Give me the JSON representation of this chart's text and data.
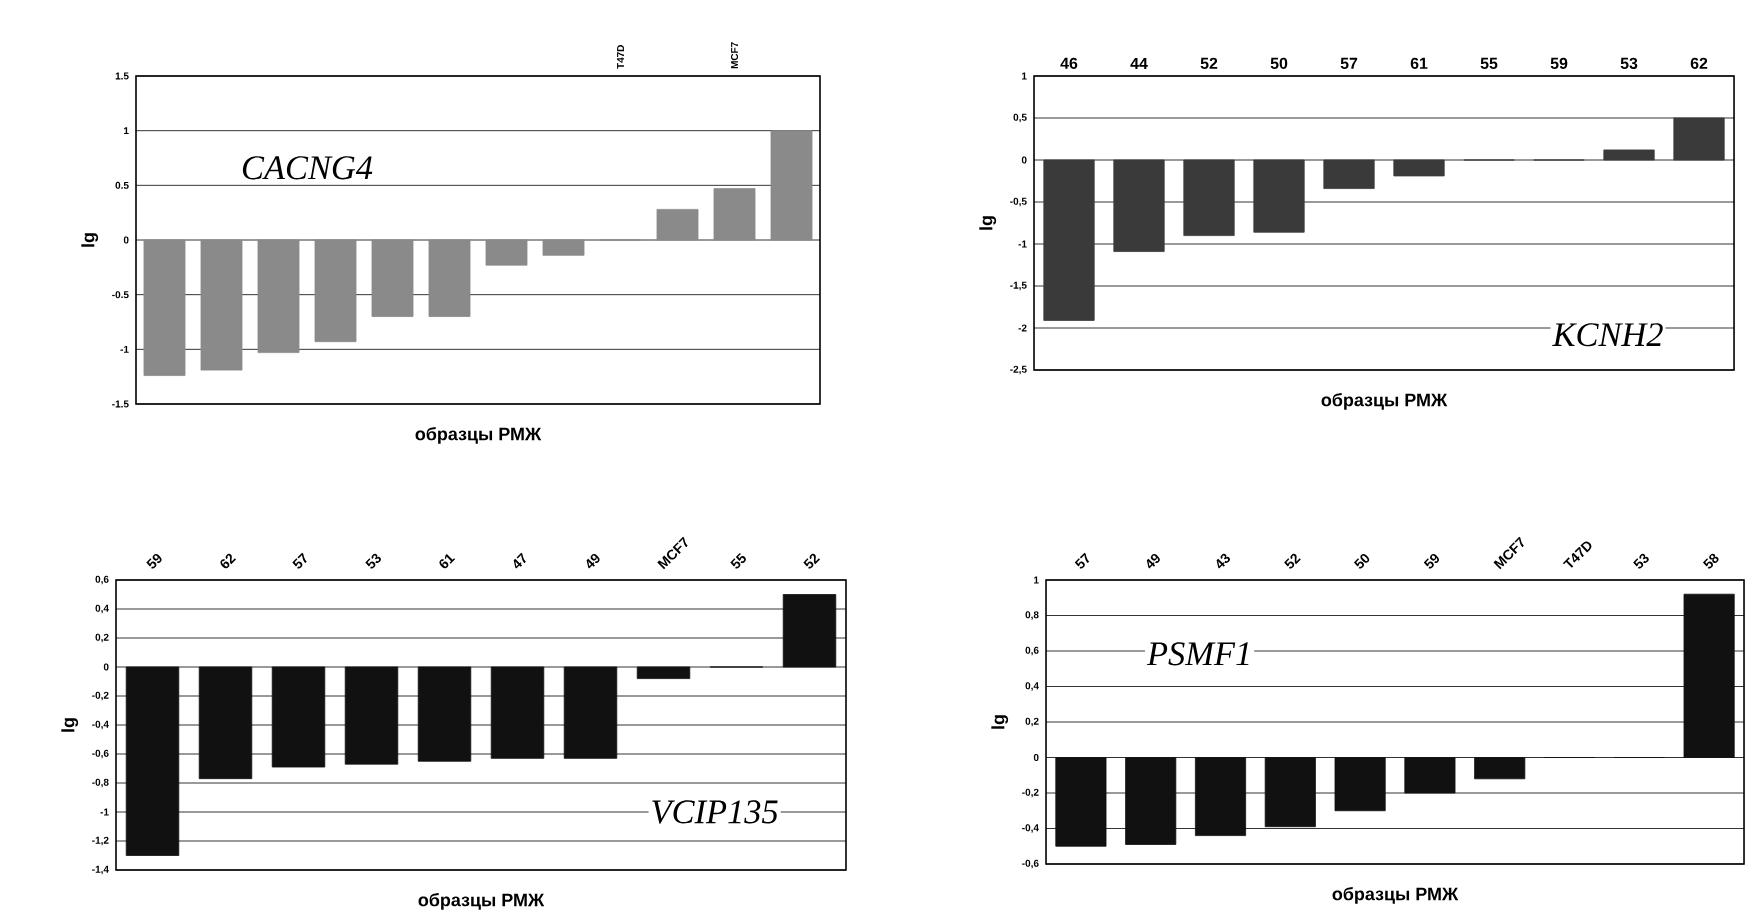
{
  "chart_data": [
    {
      "type": "bar",
      "annotations": [
        "CACNG4"
      ],
      "xlabel": "образцы РМЖ",
      "ylabel": "lg",
      "categories": [
        null,
        null,
        null,
        null,
        null,
        null,
        null,
        null,
        "T47D",
        null,
        "MCF7",
        null
      ],
      "values": [
        -1.24,
        -1.19,
        -1.03,
        -0.93,
        -0.7,
        -0.7,
        -0.23,
        -0.14,
        0,
        0.28,
        0.47,
        1.0
      ],
      "color": "#8a8a8a",
      "ylim": [
        -1.5,
        1.5
      ],
      "yticks": [
        1.5,
        1,
        0.5,
        0,
        -0.5,
        -1,
        -1.5
      ],
      "grid": "y"
    },
    {
      "type": "bar",
      "annotations": [
        "KCNH2"
      ],
      "xlabel": "образцы РМЖ",
      "ylabel": "lg",
      "categories": [
        "46",
        "44",
        "52",
        "50",
        "57",
        "61",
        "55",
        "59",
        "53",
        "62"
      ],
      "values": [
        -1.91,
        -1.09,
        -0.9,
        -0.86,
        -0.34,
        -0.19,
        0,
        0,
        0.12,
        0.5
      ],
      "color": "#3a3a3a",
      "ylim": [
        -2.5,
        1
      ],
      "yticks": [
        1,
        {
          "value": 0.5,
          "label": "0,5"
        },
        0,
        {
          "value": -0.5,
          "label": "-0,5"
        },
        -1,
        {
          "value": -1.5,
          "label": "-1,5"
        },
        -2,
        {
          "value": -2.5,
          "label": "-2,5"
        }
      ],
      "grid": "y"
    },
    {
      "type": "bar",
      "annotations": [
        "VCIP135"
      ],
      "xlabel": "образцы РМЖ",
      "ylabel": "lg",
      "categories": [
        "59",
        "62",
        "57",
        "53",
        "61",
        "47",
        "49",
        "MCF7",
        "55",
        "52"
      ],
      "values": [
        -1.3,
        -0.77,
        -0.69,
        -0.67,
        -0.65,
        -0.63,
        -0.63,
        -0.08,
        0,
        0.5
      ],
      "color": "#111111",
      "ylim": [
        -1.4,
        0.6
      ],
      "yticks": [
        {
          "value": 0.6,
          "label": "0,6"
        },
        {
          "value": 0.4,
          "label": "0,4"
        },
        {
          "value": 0.2,
          "label": "0,2"
        },
        0,
        {
          "value": -0.2,
          "label": "-0,2"
        },
        {
          "value": -0.4,
          "label": "-0,4"
        },
        {
          "value": -0.6,
          "label": "-0,6"
        },
        {
          "value": -0.8,
          "label": "-0,8"
        },
        -1,
        {
          "value": -1.2,
          "label": "-1,2"
        },
        {
          "value": -1.4,
          "label": "-1,4"
        }
      ],
      "grid": "y"
    },
    {
      "type": "bar",
      "annotations": [
        "PSMF1"
      ],
      "xlabel": "образцы РМЖ",
      "ylabel": "lg",
      "categories": [
        "57",
        "49",
        "43",
        "52",
        "50",
        "59",
        "MCF7",
        "T47D",
        "53",
        "58"
      ],
      "values": [
        -0.5,
        -0.49,
        -0.44,
        -0.39,
        -0.3,
        -0.2,
        -0.12,
        0,
        0,
        0.92
      ],
      "color": "#111111",
      "ylim": [
        -0.6,
        1
      ],
      "yticks": [
        1,
        {
          "value": 0.8,
          "label": "0,8"
        },
        {
          "value": 0.6,
          "label": "0,6"
        },
        {
          "value": 0.4,
          "label": "0,4"
        },
        {
          "value": 0.2,
          "label": "0,2"
        },
        0,
        {
          "value": -0.2,
          "label": "-0,2"
        },
        {
          "value": -0.4,
          "label": "-0,4"
        },
        {
          "value": -0.6,
          "label": "-0,6"
        }
      ],
      "grid": "y"
    }
  ]
}
